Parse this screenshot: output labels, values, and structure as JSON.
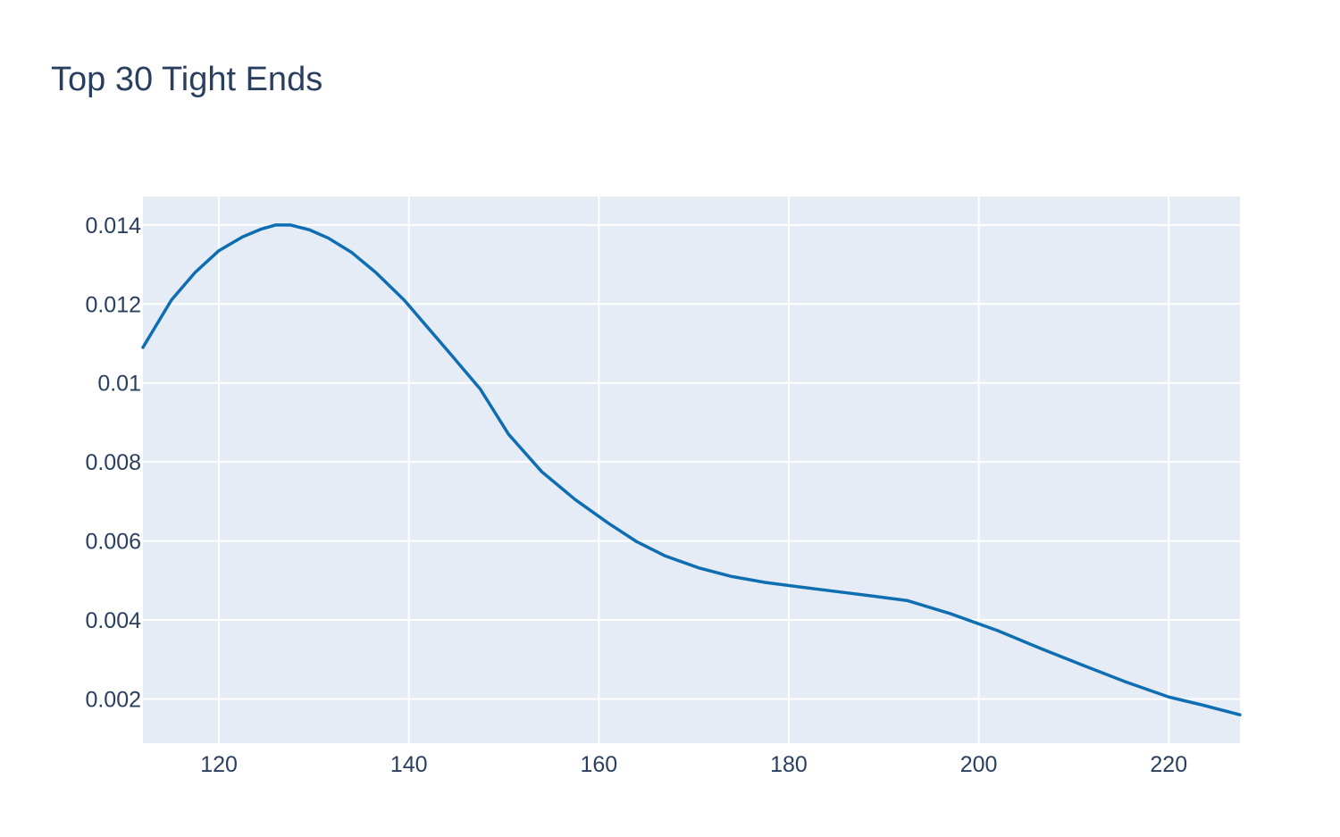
{
  "chart_data": {
    "type": "line",
    "title": "Top 30 Tight Ends",
    "xlabel": "",
    "ylabel": "",
    "xlim": [
      112,
      227.5
    ],
    "ylim": [
      0.00088,
      0.01472
    ],
    "grid": true,
    "x_ticks": [
      120,
      140,
      160,
      180,
      200,
      220
    ],
    "y_ticks": [
      0.002,
      0.004,
      0.006,
      0.008,
      0.01,
      0.012,
      0.014
    ],
    "y_tick_labels": [
      "0.002",
      "0.004",
      "0.006",
      "0.008",
      "0.01",
      "0.012",
      "0.014"
    ],
    "colors": {
      "plot_bg": "#e5ecf6",
      "grid": "#ffffff",
      "line": "#0e6eb1",
      "text": "#2a3f5f"
    },
    "series": [
      {
        "x": [
          112,
          115,
          117.5,
          120,
          122.5,
          124.5,
          126,
          127.5,
          129.5,
          131.5,
          134,
          136.5,
          139.5,
          142,
          144.5,
          147.5,
          150.5,
          154,
          157.5,
          161,
          164,
          167,
          170.5,
          174,
          177.5,
          181,
          185,
          189,
          192.5,
          197,
          202,
          206.5,
          211,
          215.5,
          220,
          223.5,
          227.5
        ],
        "y": [
          0.0109,
          0.0121,
          0.0128,
          0.01335,
          0.0137,
          0.0139,
          0.014,
          0.014,
          0.01388,
          0.01367,
          0.0133,
          0.0128,
          0.0121,
          0.0114,
          0.0107,
          0.00985,
          0.0087,
          0.00775,
          0.00705,
          0.00645,
          0.00598,
          0.00562,
          0.00532,
          0.0051,
          0.00495,
          0.00484,
          0.00472,
          0.0046,
          0.00449,
          0.00416,
          0.00373,
          0.00328,
          0.00285,
          0.00243,
          0.00205,
          0.00185,
          0.0016
        ]
      }
    ]
  }
}
